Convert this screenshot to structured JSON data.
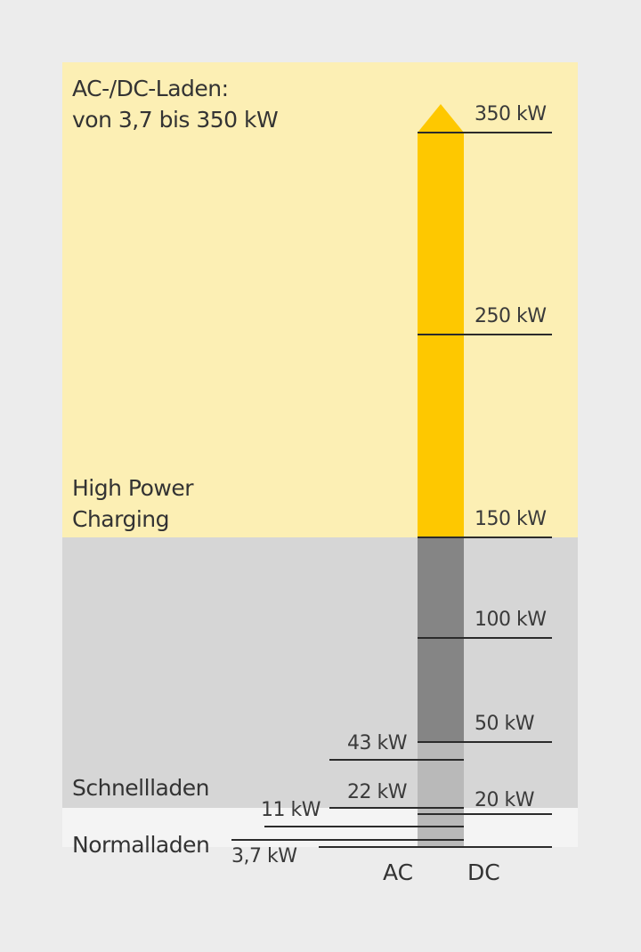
{
  "zones": {
    "hpc_header_line1": "AC-/DC-Laden:",
    "hpc_header_line2": "von 3,7 bis 350 kW",
    "hpc_line1": "High Power",
    "hpc_line2": "Charging",
    "fast": "Schnellladen",
    "normal": "Normalladen"
  },
  "dc_levels": [
    {
      "value": 350,
      "label": "350 kW"
    },
    {
      "value": 250,
      "label": "250 kW"
    },
    {
      "value": 150,
      "label": "150 kW"
    },
    {
      "value": 100,
      "label": "100 kW"
    },
    {
      "value": 50,
      "label": "50 kW"
    },
    {
      "value": 20,
      "label": "20 kW"
    }
  ],
  "ac_levels": [
    {
      "value": 43,
      "label": "43 kW"
    },
    {
      "value": 22,
      "label": "22 kW"
    },
    {
      "value": 11,
      "label": "11 kW"
    },
    {
      "value": 3.7,
      "label": "3,7 kW"
    }
  ],
  "axis": {
    "ac": "AC",
    "dc": "DC"
  },
  "colors": {
    "hpc_zone": "#fcefb4",
    "fast_zone": "#d6d6d6",
    "normal_zone": "#f4f4f4",
    "hpc_bar": "#fec800",
    "fast_bar": "#858585",
    "normal_bar": "#b9b9b9"
  }
}
